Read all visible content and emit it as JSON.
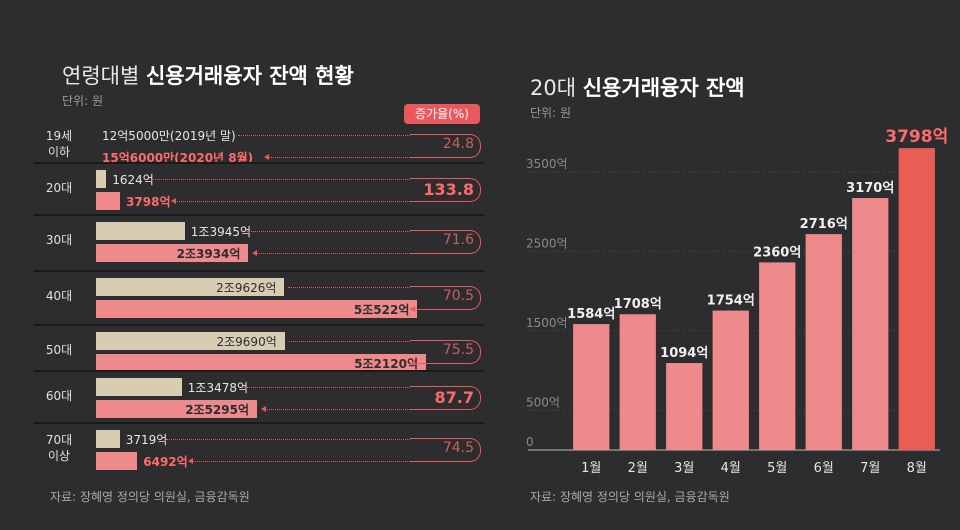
{
  "left": {
    "title_prefix": "연령대별",
    "title_bold": "신용거래융자 잔액 현황",
    "unit": "단위: 원",
    "rate_header": "증가율(%)",
    "groups": [
      {
        "label1": "19세",
        "label2": "이하",
        "old": "12억5000만(2019년 말)",
        "new": "15억6000만(2020년 8월)",
        "rate": "24.8",
        "old_frac": 0,
        "new_frac": 0
      },
      {
        "label1": "20대",
        "label2": "",
        "old": "1624억",
        "new": "3798억",
        "rate": "133.8",
        "old_frac": 0.031,
        "new_frac": 0.073
      },
      {
        "label1": "30대",
        "label2": "",
        "old": "1조3945억",
        "new": "2조3934억",
        "rate": "71.6",
        "old_frac": 0.269,
        "new_frac": 0.462
      },
      {
        "label1": "40대",
        "label2": "",
        "old": "2조9626억",
        "new": "5조522억",
        "rate": "70.5",
        "old_frac": 0.571,
        "new_frac": 0.974
      },
      {
        "label1": "50대",
        "label2": "",
        "old": "2조9690억",
        "new": "5조2120억",
        "rate": "75.5",
        "old_frac": 0.572,
        "new_frac": 1.0
      },
      {
        "label1": "60대",
        "label2": "",
        "old": "1조3478억",
        "new": "2조5295억",
        "rate": "87.7",
        "old_frac": 0.26,
        "new_frac": 0.488
      },
      {
        "label1": "70대",
        "label2": "이상",
        "old": "3719억",
        "new": "6492억",
        "rate": "74.5",
        "old_frac": 0.072,
        "new_frac": 0.125
      }
    ],
    "source": "자료: 장혜영 정의당 의원실, 금융감독원"
  },
  "right": {
    "title_prefix": "20대",
    "title_bold": "신용거래융자 잔액",
    "unit": "단위: 원",
    "source": "자료: 장혜영 정의당 의원실, 금융감독원"
  },
  "colors": {
    "accent": "#e8585c",
    "bar": "#ef8a8c",
    "highlight": "#e95d55",
    "old": "#d8ccb2",
    "bg": "#2d2d2f"
  },
  "chart_data": [
    {
      "type": "bar",
      "title": "연령대별 신용거래융자 잔액 현황",
      "categories": [
        "19세 이하",
        "20대",
        "30대",
        "40대",
        "50대",
        "60대",
        "70대 이상"
      ],
      "series": [
        {
          "name": "2019년 말",
          "values": [
            12.5,
            1624,
            13945,
            29626,
            29690,
            13478,
            3719
          ]
        },
        {
          "name": "2020년 8월",
          "values": [
            15.6,
            3798,
            23934,
            50522,
            52120,
            25295,
            6492
          ]
        }
      ],
      "rates": [
        24.8,
        133.8,
        71.6,
        70.5,
        75.5,
        87.7,
        74.5
      ]
    },
    {
      "type": "bar",
      "title": "20대 신용거래융자 잔액",
      "categories": [
        "1월",
        "2월",
        "3월",
        "4월",
        "5월",
        "6월",
        "7월",
        "8월"
      ],
      "values": [
        1584,
        1708,
        1094,
        1754,
        2360,
        2716,
        3170,
        3798
      ],
      "value_labels": [
        "1584억",
        "1708억",
        "1094억",
        "1754억",
        "2360억",
        "2716억",
        "3170억",
        "3798억"
      ],
      "yticks": [
        0,
        500,
        1500,
        2500,
        3500
      ],
      "ytick_labels": [
        "0",
        "500억",
        "1500억",
        "2500억",
        "3500억"
      ],
      "ylim": [
        0,
        3900
      ]
    }
  ]
}
